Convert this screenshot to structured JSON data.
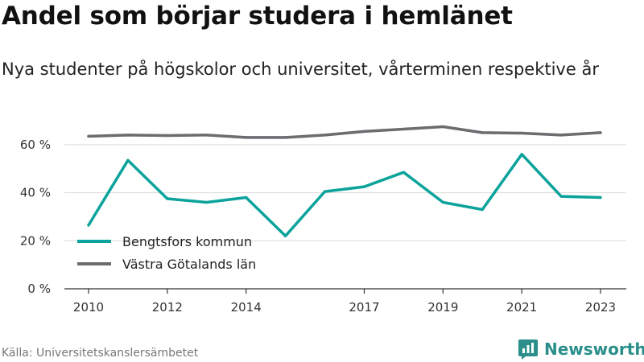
{
  "title": "Andel som börjar studera i hemlänet",
  "subtitle": "Nya studenter på högskolor och universitet, vårterminen respektive år",
  "source": "Källa: Universitetskanslersämbetet",
  "brand": "Newsworthy",
  "colors": {
    "series1": "#0ba39b",
    "series2": "#6b6b70",
    "grid": "#d9d9d9",
    "axis": "#333333",
    "brand": "#2a8f8a"
  },
  "chart_data": {
    "type": "line",
    "title": "Andel som börjar studera i hemlänet",
    "subtitle": "Nya studenter på högskolor och universitet, vårterminen respektive år",
    "x": [
      2010,
      2011,
      2012,
      2013,
      2014,
      2015,
      2016,
      2017,
      2018,
      2019,
      2020,
      2021,
      2022,
      2023
    ],
    "xticks": [
      2010,
      2012,
      2014,
      2017,
      2019,
      2021,
      2023
    ],
    "yticks": [
      0,
      20,
      40,
      60
    ],
    "ytick_labels": [
      "0 %",
      "20 %",
      "40 %",
      "60 %"
    ],
    "ylim": [
      0,
      70
    ],
    "grid": "horizontal",
    "legend": "bottom-left",
    "series": [
      {
        "name": "Bengtsfors kommun",
        "color": "#0ba39b",
        "values": [
          26.5,
          53.5,
          37.5,
          36.0,
          38.0,
          22.0,
          40.5,
          42.5,
          48.5,
          36.0,
          33.0,
          56.0,
          38.5,
          38.0
        ]
      },
      {
        "name": "Västra Götalands län",
        "color": "#6b6b70",
        "values": [
          63.5,
          64.0,
          63.8,
          64.0,
          63.0,
          63.0,
          64.0,
          65.5,
          66.5,
          67.5,
          65.0,
          64.8,
          64.0,
          65.0
        ]
      }
    ]
  }
}
